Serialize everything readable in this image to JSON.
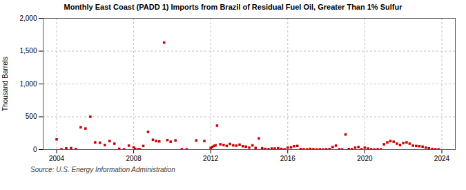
{
  "chart_data": {
    "type": "scatter",
    "title": "Monthly East Coast (PADD 1) Imports from Brazil of Residual Fuel Oil, Greater Than 1% Sulfur",
    "ylabel": "Thousand Barrels",
    "source": "Source: U.S. Energy Information Administration",
    "color": "#cc0000",
    "marker": "square",
    "grid": true,
    "xlim": [
      2003.3,
      2024.7
    ],
    "xticks": [
      2004,
      2008,
      2012,
      2016,
      2020,
      2024
    ],
    "ylim": [
      0,
      2000
    ],
    "yticks": [
      0,
      500,
      {
        "value": 1000,
        "label": "1,000"
      },
      {
        "value": 1500,
        "label": "1,500"
      },
      {
        "value": 2000,
        "label": "2,000"
      }
    ],
    "x": [
      2004.0,
      2004.25,
      2004.5,
      2004.75,
      2005.0,
      2005.25,
      2005.5,
      2005.75,
      2006.0,
      2006.25,
      2006.5,
      2006.75,
      2007.0,
      2007.25,
      2007.5,
      2007.75,
      2008.0,
      2008.08,
      2008.25,
      2008.33,
      2008.5,
      2008.75,
      2009.0,
      2009.17,
      2009.33,
      2009.58,
      2009.75,
      2009.92,
      2010.17,
      2010.5,
      2010.75,
      2011.25,
      2011.67,
      2012.0,
      2012.08,
      2012.17,
      2012.25,
      2012.33,
      2012.5,
      2012.67,
      2012.83,
      2013.0,
      2013.17,
      2013.33,
      2013.5,
      2013.67,
      2013.83,
      2014.0,
      2014.17,
      2014.33,
      2014.5,
      2014.67,
      2014.83,
      2015.0,
      2015.17,
      2015.33,
      2015.5,
      2015.67,
      2015.83,
      2016.0,
      2016.17,
      2016.33,
      2016.5,
      2016.67,
      2016.83,
      2017.0,
      2017.17,
      2017.33,
      2017.5,
      2017.67,
      2017.83,
      2018.0,
      2018.17,
      2018.33,
      2018.5,
      2018.67,
      2018.83,
      2019.0,
      2019.17,
      2019.33,
      2019.5,
      2019.67,
      2019.83,
      2020.0,
      2020.17,
      2020.33,
      2020.5,
      2020.67,
      2020.83,
      2021.0,
      2021.17,
      2021.33,
      2021.5,
      2021.67,
      2021.83,
      2022.0,
      2022.17,
      2022.33,
      2022.5,
      2022.67,
      2022.83,
      2023.0,
      2023.17,
      2023.33,
      2023.5,
      2023.67,
      2023.83
    ],
    "values": [
      155,
      5,
      18,
      22,
      8,
      340,
      320,
      500,
      110,
      105,
      70,
      130,
      90,
      12,
      5,
      60,
      35,
      10,
      5,
      2,
      55,
      270,
      150,
      130,
      125,
      1630,
      145,
      120,
      140,
      5,
      3,
      140,
      130,
      25,
      40,
      55,
      65,
      365,
      80,
      70,
      55,
      85,
      65,
      60,
      75,
      50,
      45,
      30,
      65,
      25,
      170,
      20,
      10,
      5,
      15,
      15,
      20,
      10,
      5,
      30,
      35,
      50,
      55,
      8,
      5,
      3,
      10,
      5,
      3,
      5,
      2,
      5,
      8,
      40,
      60,
      5,
      3,
      230,
      8,
      5,
      30,
      40,
      5,
      30,
      15,
      5,
      3,
      5,
      3,
      80,
      110,
      130,
      120,
      90,
      70,
      100,
      110,
      90,
      60,
      55,
      50,
      45,
      30,
      20,
      10,
      5,
      3
    ]
  }
}
